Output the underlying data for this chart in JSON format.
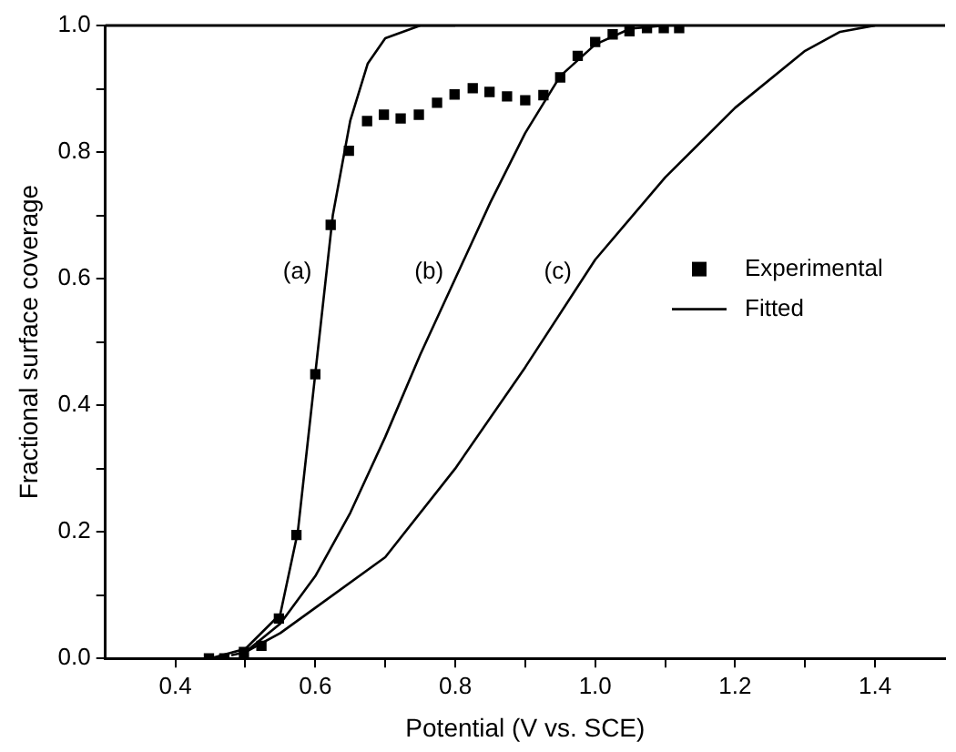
{
  "chart_data": {
    "type": "scatter",
    "xlabel": "Potential (V vs. SCE)",
    "ylabel": "Fractional surface coverage",
    "xlim": [
      0.3,
      1.5
    ],
    "ylim": [
      0,
      1.0
    ],
    "xticks": [
      {
        "value": 0.4,
        "label": "0.4"
      },
      {
        "value": 0.5,
        "label": null
      },
      {
        "value": 0.6,
        "label": "0.6"
      },
      {
        "value": 0.7,
        "label": null
      },
      {
        "value": 0.8,
        "label": "0.8"
      },
      {
        "value": 0.9,
        "label": null
      },
      {
        "value": 1.0,
        "label": "1.0"
      },
      {
        "value": 1.1,
        "label": null
      },
      {
        "value": 1.2,
        "label": "1.2"
      },
      {
        "value": 1.3,
        "label": null
      },
      {
        "value": 1.4,
        "label": "1.4"
      }
    ],
    "yticks": [
      {
        "value": 0,
        "label": "0.0"
      },
      {
        "value": 0.1,
        "label": null
      },
      {
        "value": 0.2,
        "label": "0.2"
      },
      {
        "value": 0.3,
        "label": null
      },
      {
        "value": 0.4,
        "label": "0.4"
      },
      {
        "value": 0.5,
        "label": null
      },
      {
        "value": 0.6,
        "label": "0.6"
      },
      {
        "value": 0.7,
        "label": null
      },
      {
        "value": 0.8,
        "label": "0.8"
      },
      {
        "value": 0.9,
        "label": null
      },
      {
        "value": 1.0,
        "label": "1.0"
      }
    ],
    "grid": false,
    "legend": "right",
    "series": [
      {
        "name": "Experimental",
        "type": "scatter",
        "marker": "square",
        "color": "#000000",
        "x": [
          0.448,
          0.47,
          0.498,
          0.523,
          0.548,
          0.573,
          0.6,
          0.622,
          0.648,
          0.674,
          0.698,
          0.722,
          0.748,
          0.774,
          0.799,
          0.825,
          0.849,
          0.874,
          0.9,
          0.926,
          0.95,
          0.975,
          1.0,
          1.025,
          1.049,
          1.074,
          1.098,
          1.12
        ],
        "values": [
          0,
          0,
          0.01,
          0.02,
          0.063,
          0.195,
          0.449,
          0.685,
          0.802,
          0.849,
          0.859,
          0.853,
          0.859,
          0.878,
          0.891,
          0.901,
          0.895,
          0.888,
          0.882,
          0.89,
          0.918,
          0.952,
          0.974,
          0.986,
          0.991,
          0.996,
          0.996,
          0.996
        ]
      },
      {
        "name": "Fitted",
        "type": "line",
        "marker": "none",
        "color": "#000000",
        "x": [
          0.45,
          0.5,
          0.55,
          0.575,
          0.6,
          0.625,
          0.65,
          0.675,
          0.7,
          0.75,
          0.8
        ],
        "values": [
          0,
          0.015,
          0.07,
          0.2,
          0.45,
          0.7,
          0.85,
          0.94,
          0.98,
          1.0,
          1.0
        ]
      },
      {
        "type": "line",
        "marker": "none",
        "color": "#000000",
        "x": [
          0.48,
          0.5,
          0.55,
          0.6,
          0.65,
          0.7,
          0.75,
          0.8,
          0.85,
          0.9,
          0.95,
          1.0,
          1.05,
          1.1
        ],
        "values": [
          0.005,
          0.01,
          0.055,
          0.13,
          0.23,
          0.35,
          0.48,
          0.6,
          0.72,
          0.83,
          0.92,
          0.97,
          0.995,
          1.0
        ]
      },
      {
        "type": "line",
        "marker": "none",
        "color": "#000000",
        "x": [
          0.5,
          0.55,
          0.6,
          0.7,
          0.8,
          0.9,
          1.0,
          1.1,
          1.2,
          1.3,
          1.35,
          1.4
        ],
        "values": [
          0.01,
          0.04,
          0.08,
          0.16,
          0.3,
          0.46,
          0.63,
          0.76,
          0.87,
          0.96,
          0.99,
          1.0
        ]
      }
    ],
    "annotations": [
      "(a)",
      "(b)",
      "(c)"
    ]
  }
}
